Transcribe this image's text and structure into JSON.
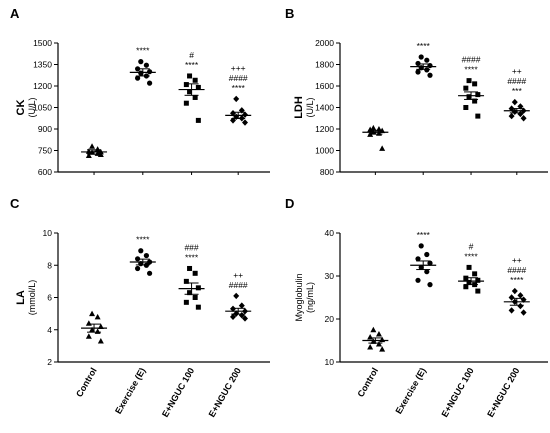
{
  "chart_data": [
    {
      "panel": "A",
      "type": "scatter",
      "ylabel": [
        "CK",
        "(U/L)"
      ],
      "ylim": [
        600,
        1500
      ],
      "yticks": [
        600,
        750,
        900,
        1050,
        1200,
        1350,
        1500
      ],
      "categories": [
        "Control",
        "Exercise (E)",
        "E+NGUC 100",
        "E+NGUC 200"
      ],
      "markers": [
        "triangle",
        "circle",
        "square",
        "diamond"
      ],
      "means": [
        740,
        1295,
        1175,
        995
      ],
      "sems": [
        15,
        25,
        40,
        22
      ],
      "points": [
        [
          780,
          760,
          745,
          740,
          738,
          730,
          715,
          722
        ],
        [
          1370,
          1345,
          1320,
          1300,
          1290,
          1270,
          1255,
          1220
        ],
        [
          1270,
          1240,
          1210,
          1190,
          1160,
          1120,
          1080,
          960
        ],
        [
          1110,
          1030,
          1010,
          1000,
          985,
          975,
          960,
          945
        ]
      ],
      "annotations": [
        [],
        [
          "****"
        ],
        [
          "#",
          "****"
        ],
        [
          "+++",
          "####",
          "****"
        ]
      ]
    },
    {
      "panel": "B",
      "type": "scatter",
      "ylabel": [
        "LDH",
        "(U/L)"
      ],
      "ylim": [
        800,
        2000
      ],
      "yticks": [
        800,
        1000,
        1200,
        1400,
        1600,
        1800,
        2000
      ],
      "categories": [
        "Control",
        "Exercise (E)",
        "E+NGUC 100",
        "E+NGUC 200"
      ],
      "markers": [
        "triangle",
        "circle",
        "square",
        "diamond"
      ],
      "means": [
        1170,
        1780,
        1510,
        1370
      ],
      "sems": [
        18,
        25,
        35,
        20
      ],
      "points": [
        [
          1210,
          1200,
          1195,
          1185,
          1175,
          1160,
          1150,
          1020
        ],
        [
          1870,
          1840,
          1810,
          1790,
          1770,
          1750,
          1730,
          1700
        ],
        [
          1650,
          1620,
          1580,
          1520,
          1500,
          1460,
          1400,
          1320
        ],
        [
          1450,
          1410,
          1390,
          1370,
          1360,
          1340,
          1320,
          1300
        ]
      ],
      "annotations": [
        [],
        [
          "****"
        ],
        [
          "####",
          "****"
        ],
        [
          "++",
          "####",
          "***"
        ]
      ]
    },
    {
      "panel": "C",
      "type": "scatter",
      "ylabel": [
        "LA",
        "(mmol/L)"
      ],
      "ylim": [
        2,
        10
      ],
      "yticks": [
        2,
        4,
        6,
        8,
        10
      ],
      "categories": [
        "Control",
        "Exercise (E)",
        "E+NGUC 100",
        "E+NGUC 200"
      ],
      "markers": [
        "triangle",
        "circle",
        "square",
        "diamond"
      ],
      "means": [
        4.1,
        8.2,
        6.55,
        5.15
      ],
      "sems": [
        0.25,
        0.18,
        0.35,
        0.18
      ],
      "points": [
        [
          5.0,
          4.8,
          4.4,
          4.2,
          4.0,
          3.9,
          3.6,
          3.3
        ],
        [
          8.9,
          8.6,
          8.4,
          8.2,
          8.1,
          8.0,
          7.8,
          7.5
        ],
        [
          7.8,
          7.5,
          7.0,
          6.6,
          6.3,
          6.0,
          5.7,
          5.4
        ],
        [
          6.1,
          5.5,
          5.3,
          5.15,
          5.0,
          4.9,
          4.8,
          4.7
        ]
      ],
      "annotations": [
        [],
        [
          "****"
        ],
        [
          "###",
          "****"
        ],
        [
          "++",
          "####"
        ]
      ]
    },
    {
      "panel": "D",
      "type": "scatter",
      "ylabel": [
        "Myoglobulin",
        "(ng/mL)"
      ],
      "ylim": [
        10,
        40
      ],
      "yticks": [
        10,
        20,
        30,
        40
      ],
      "categories": [
        "Control",
        "Exercise (E)",
        "E+NGUC 100",
        "E+NGUC 200"
      ],
      "markers": [
        "triangle",
        "circle",
        "square",
        "diamond"
      ],
      "means": [
        15.0,
        32.5,
        28.8,
        24.0
      ],
      "sems": [
        0.6,
        1.0,
        0.8,
        0.8
      ],
      "points": [
        [
          17.5,
          16.5,
          15.8,
          15.2,
          14.8,
          14.2,
          13.5,
          13.0
        ],
        [
          37.0,
          35.0,
          34.0,
          33.0,
          32.0,
          31.0,
          29.0,
          28.0
        ],
        [
          32.0,
          30.5,
          29.5,
          29.0,
          28.5,
          28.0,
          27.5,
          26.5
        ],
        [
          26.5,
          25.5,
          25.0,
          24.5,
          24.0,
          23.0,
          22.0,
          21.5
        ]
      ],
      "annotations": [
        [],
        [
          "****"
        ],
        [
          "#",
          "****"
        ],
        [
          "++",
          "####",
          "****"
        ]
      ]
    }
  ]
}
